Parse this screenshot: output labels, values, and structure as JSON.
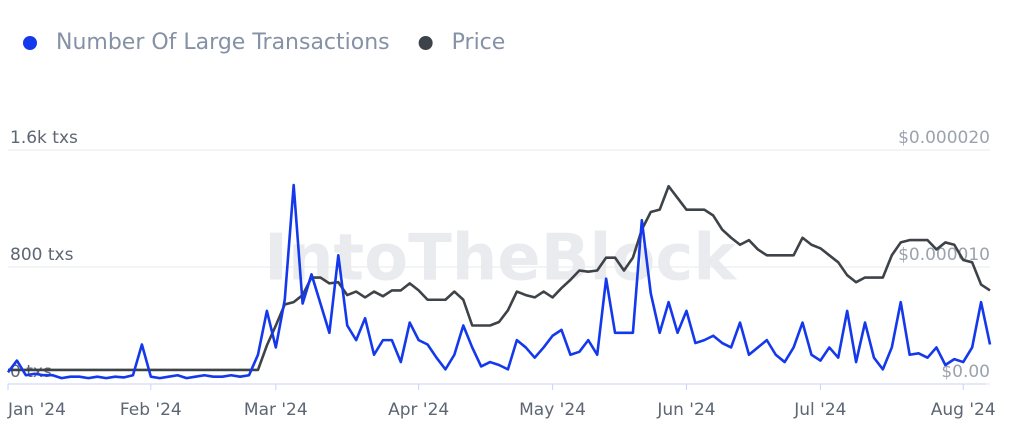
{
  "chart_data": {
    "type": "line",
    "watermark": "IntoTheBlock",
    "categories": [
      "Jan '24",
      null,
      null,
      null,
      null,
      null,
      null,
      null,
      null,
      null,
      null,
      null,
      null,
      null,
      null,
      null,
      "Feb '24",
      null,
      null,
      null,
      null,
      null,
      null,
      null,
      null,
      null,
      null,
      null,
      null,
      null,
      "Mar '24",
      null,
      null,
      null,
      null,
      null,
      null,
      null,
      null,
      null,
      null,
      null,
      null,
      null,
      null,
      null,
      "Apr '24",
      null,
      null,
      null,
      null,
      null,
      null,
      null,
      null,
      null,
      null,
      null,
      null,
      null,
      null,
      "May '24",
      null,
      null,
      null,
      null,
      null,
      null,
      null,
      null,
      null,
      null,
      null,
      null,
      null,
      null,
      "Jun '24",
      null,
      null,
      null,
      null,
      null,
      null,
      null,
      null,
      null,
      null,
      null,
      null,
      null,
      null,
      "Jul '24",
      null,
      null,
      null,
      null,
      null,
      null,
      null,
      null,
      null,
      null,
      null,
      null,
      null,
      null,
      null,
      "Aug '24",
      null,
      null,
      null
    ],
    "series": [
      {
        "name": "Number Of Large Transactions",
        "color": "#1438ec",
        "values": [
          80,
          160,
          60,
          70,
          60,
          60,
          40,
          50,
          50,
          40,
          50,
          40,
          50,
          45,
          60,
          270,
          50,
          40,
          50,
          60,
          40,
          50,
          60,
          50,
          50,
          60,
          50,
          60,
          200,
          500,
          250,
          575,
          1360,
          550,
          750,
          550,
          350,
          880,
          400,
          300,
          450,
          200,
          300,
          300,
          150,
          420,
          300,
          270,
          180,
          100,
          200,
          400,
          250,
          120,
          150,
          130,
          100,
          300,
          250,
          180,
          250,
          330,
          370,
          200,
          220,
          300,
          200,
          720,
          350,
          350,
          350,
          1120,
          620,
          350,
          560,
          350,
          500,
          280,
          300,
          330,
          280,
          250,
          420,
          200,
          250,
          300,
          200,
          150,
          250,
          420,
          200,
          160,
          250,
          180,
          500,
          150,
          420,
          180,
          100,
          250,
          560,
          200,
          210,
          180,
          250,
          130,
          170,
          150,
          250,
          560,
          270
        ]
      },
      {
        "name": "Price",
        "color": "#3d4348",
        "axis": "y2",
        "values": [
          1.2e-06,
          1.2e-06,
          1.2e-06,
          1.2e-06,
          1.2e-06,
          1.2e-06,
          1.2e-06,
          1.2e-06,
          1.2e-06,
          1.2e-06,
          1.2e-06,
          1.2e-06,
          1.2e-06,
          1.2e-06,
          1.2e-06,
          1.2e-06,
          1.2e-06,
          1.2e-06,
          1.2e-06,
          1.2e-06,
          1.2e-06,
          1.2e-06,
          1.2e-06,
          1.2e-06,
          1.2e-06,
          1.2e-06,
          1.2e-06,
          1.2e-06,
          1.2e-06,
          3.3e-06,
          5e-06,
          6.8e-06,
          7e-06,
          7.6e-06,
          9.1e-06,
          9.1e-06,
          8.6e-06,
          8.7e-06,
          7.6e-06,
          7.9e-06,
          7.4e-06,
          7.9e-06,
          7.5e-06,
          8e-06,
          8e-06,
          8.6e-06,
          8e-06,
          7.2e-06,
          7.2e-06,
          7.2e-06,
          7.9e-06,
          7.2e-06,
          5e-06,
          5e-06,
          5e-06,
          5.3e-06,
          6.3e-06,
          7.9e-06,
          7.6e-06,
          7.4e-06,
          7.9e-06,
          7.4e-06,
          8.2e-06,
          8.9e-06,
          9.7e-06,
          9.6e-06,
          9.7e-06,
          1.08e-05,
          1.08e-05,
          9.7e-06,
          1.08e-05,
          1.32e-05,
          1.47e-05,
          1.49e-05,
          1.69e-05,
          1.59e-05,
          1.49e-05,
          1.49e-05,
          1.49e-05,
          1.44e-05,
          1.32e-05,
          1.25e-05,
          1.19e-05,
          1.23e-05,
          1.15e-05,
          1.1e-05,
          1.1e-05,
          1.1e-05,
          1.1e-05,
          1.25e-05,
          1.19e-05,
          1.16e-05,
          1.1e-05,
          1.04e-05,
          9.3e-06,
          8.7e-06,
          9.1e-06,
          9.1e-06,
          9.1e-06,
          1.1e-05,
          1.21e-05,
          1.23e-05,
          1.23e-05,
          1.23e-05,
          1.15e-05,
          1.21e-05,
          1.19e-05,
          1.06e-05,
          1.04e-05,
          8.5e-06,
          8e-06
        ]
      }
    ],
    "ylim": [
      0,
      1600
    ],
    "yticks": [
      {
        "value": 0,
        "label": "0 txs"
      },
      {
        "value": 800,
        "label": "800 txs"
      },
      {
        "value": 1600,
        "label": "1.6k txs"
      }
    ],
    "y2lim": [
      0,
      2e-05
    ],
    "y2ticks": [
      {
        "value": 0,
        "label": "$0.00"
      },
      {
        "value": 1e-05,
        "label": "$0.000010"
      },
      {
        "value": 2e-05,
        "label": "$0.000020"
      }
    ],
    "grid": true,
    "legend": "top-left"
  }
}
